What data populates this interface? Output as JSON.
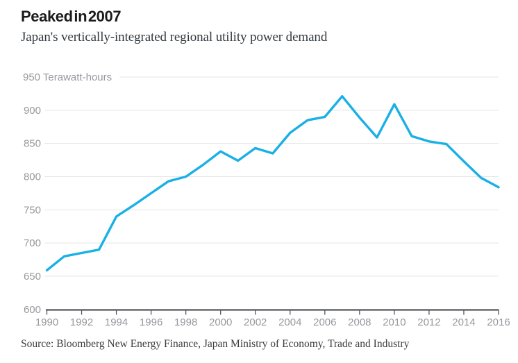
{
  "chart_data": {
    "type": "line",
    "title": "Peaked in 2007",
    "subtitle": "Japan's vertically-integrated regional utility power demand",
    "y_axis_unit_label": "950 Terawatt-hours",
    "source": "Source: Bloomberg New Energy Finance, Japan Ministry of Economy, Trade and Industry",
    "x": [
      1990,
      1991,
      1992,
      1993,
      1994,
      1995,
      1996,
      1997,
      1998,
      1999,
      2000,
      2001,
      2002,
      2003,
      2004,
      2005,
      2006,
      2007,
      2008,
      2009,
      2010,
      2011,
      2012,
      2013,
      2014,
      2015,
      2016
    ],
    "values": [
      659,
      680,
      685,
      690,
      740,
      757,
      775,
      793,
      800,
      818,
      838,
      824,
      843,
      835,
      866,
      885,
      890,
      921,
      889,
      859,
      909,
      861,
      853,
      849,
      823,
      798,
      784
    ],
    "ylabel": "Terawatt-hours",
    "ylim": [
      600,
      950
    ],
    "y_ticks": [
      600,
      650,
      700,
      750,
      800,
      850,
      900,
      950
    ],
    "x_tick_labels": [
      "1990",
      "1992",
      "1994",
      "1996",
      "1998",
      "2000",
      "2002",
      "2004",
      "2006",
      "2008",
      "2010",
      "2012",
      "2014",
      "2016"
    ],
    "grid": "horizontal-only",
    "legend": "none",
    "colors": {
      "line": "#19b0e6",
      "grid": "#e4e5e6",
      "axis": "#54575c",
      "tick_labels": "#96989d",
      "title": "#1b1b1b",
      "subtitle": "#33393f",
      "source": "#3d3d3d",
      "background": "#ffffff"
    }
  }
}
